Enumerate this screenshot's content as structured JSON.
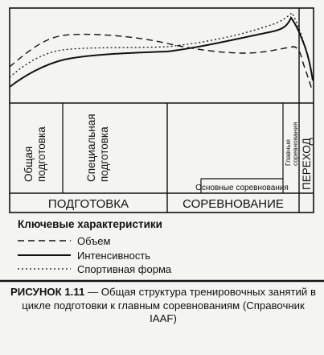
{
  "diagram": {
    "phases": {
      "preparation": "ПОДГОТОВКА",
      "competition": "СОРЕВНОВАНИЕ",
      "transition": "ПЕРЕХОД"
    },
    "subphases": {
      "general_prep": "Общая подготовка",
      "special_prep": "Специальная подготовка",
      "main_competitions": "Основные соревнования",
      "main_competitions_peak": "Главные соревнования"
    },
    "legend": {
      "title": "Ключевые характеристики",
      "items": [
        {
          "label": "Объем",
          "style": "dashed"
        },
        {
          "label": "Интенсивность",
          "style": "solid"
        },
        {
          "label": "Спортивная форма",
          "style": "dotted"
        }
      ]
    },
    "caption": {
      "number": "РИСУНОК 1.11",
      "text": " — Общая структура тренировочных занятий в цикле подготовки к главным соревнованиям (Справочник IAAF)"
    }
  }
}
